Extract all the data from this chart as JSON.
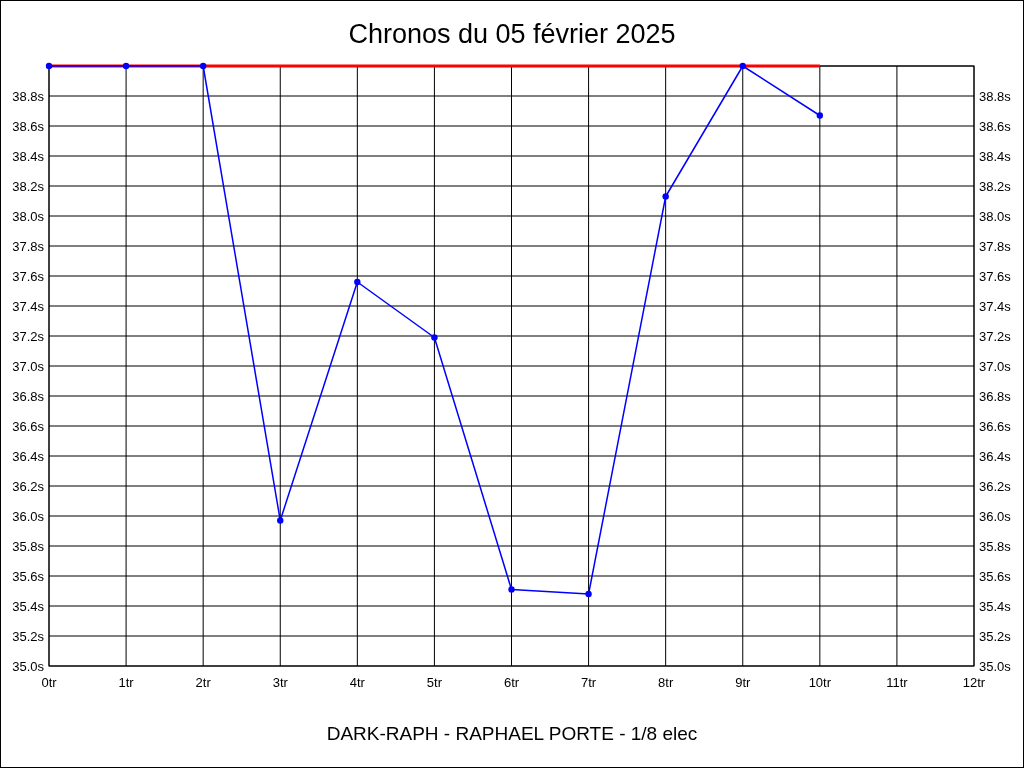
{
  "chart_data": {
    "type": "line",
    "title": "Chronos du 05 février 2025",
    "xlabel": "DARK-RAPH - RAPHAEL PORTE - 1/8 elec",
    "xlim": [
      0,
      12
    ],
    "xticks": [
      {
        "value": 0,
        "label": "0tr"
      },
      {
        "value": 1,
        "label": "1tr"
      },
      {
        "value": 2,
        "label": "2tr"
      },
      {
        "value": 3,
        "label": "3tr"
      },
      {
        "value": 4,
        "label": "4tr"
      },
      {
        "value": 5,
        "label": "5tr"
      },
      {
        "value": 6,
        "label": "6tr"
      },
      {
        "value": 7,
        "label": "7tr"
      },
      {
        "value": 8,
        "label": "8tr"
      },
      {
        "value": 9,
        "label": "9tr"
      },
      {
        "value": 10,
        "label": "10tr"
      },
      {
        "value": 11,
        "label": "11tr"
      },
      {
        "value": 12,
        "label": "12tr"
      }
    ],
    "ylim": [
      35,
      39
    ],
    "yticks": [
      {
        "value": 35,
        "label": "35.0s"
      },
      {
        "value": 35.2,
        "label": "35.2s"
      },
      {
        "value": 35.4,
        "label": "35.4s"
      },
      {
        "value": 35.6,
        "label": "35.6s"
      },
      {
        "value": 35.8,
        "label": "35.8s"
      },
      {
        "value": 36,
        "label": "36.0s"
      },
      {
        "value": 36.2,
        "label": "36.2s"
      },
      {
        "value": 36.4,
        "label": "36.4s"
      },
      {
        "value": 36.6,
        "label": "36.6s"
      },
      {
        "value": 36.8,
        "label": "36.8s"
      },
      {
        "value": 37,
        "label": "37.0s"
      },
      {
        "value": 37.2,
        "label": "37.2s"
      },
      {
        "value": 37.4,
        "label": "37.4s"
      },
      {
        "value": 37.6,
        "label": "37.6s"
      },
      {
        "value": 37.8,
        "label": "37.8s"
      },
      {
        "value": 38,
        "label": "38.0s"
      },
      {
        "value": 38.2,
        "label": "38.2s"
      },
      {
        "value": 38.4,
        "label": "38.4s"
      },
      {
        "value": 38.6,
        "label": "38.6s"
      },
      {
        "value": 38.8,
        "label": "38.8s"
      },
      {
        "value": 39,
        "label": null
      }
    ],
    "y2lim": [
      35,
      39
    ],
    "y2ticks": [
      {
        "value": 35,
        "label": "35.0s"
      },
      {
        "value": 35.2,
        "label": "35.2s"
      },
      {
        "value": 35.4,
        "label": "35.4s"
      },
      {
        "value": 35.6,
        "label": "35.6s"
      },
      {
        "value": 35.8,
        "label": "35.8s"
      },
      {
        "value": 36,
        "label": "36.0s"
      },
      {
        "value": 36.2,
        "label": "36.2s"
      },
      {
        "value": 36.4,
        "label": "36.4s"
      },
      {
        "value": 36.6,
        "label": "36.6s"
      },
      {
        "value": 36.8,
        "label": "36.8s"
      },
      {
        "value": 37,
        "label": "37.0s"
      },
      {
        "value": 37.2,
        "label": "37.2s"
      },
      {
        "value": 37.4,
        "label": "37.4s"
      },
      {
        "value": 37.6,
        "label": "37.6s"
      },
      {
        "value": 37.8,
        "label": "37.8s"
      },
      {
        "value": 38,
        "label": "38.0s"
      },
      {
        "value": 38.2,
        "label": "38.2s"
      },
      {
        "value": 38.4,
        "label": "38.4s"
      },
      {
        "value": 38.6,
        "label": "38.6s"
      },
      {
        "value": 38.8,
        "label": "38.8s"
      }
    ],
    "grid": true,
    "line_style": "solid",
    "series": [
      {
        "color": "#ff0000",
        "x": [
          0,
          10
        ],
        "values": [
          39,
          39
        ],
        "marker": "none"
      },
      {
        "color": "#0000ff",
        "x": [
          0,
          1,
          2,
          3,
          4,
          5,
          6,
          7,
          8,
          9,
          10
        ],
        "values": [
          39,
          39,
          39,
          35.97,
          37.56,
          37.19,
          35.51,
          35.48,
          38.13,
          39,
          38.67
        ],
        "marker": "circle"
      }
    ]
  }
}
